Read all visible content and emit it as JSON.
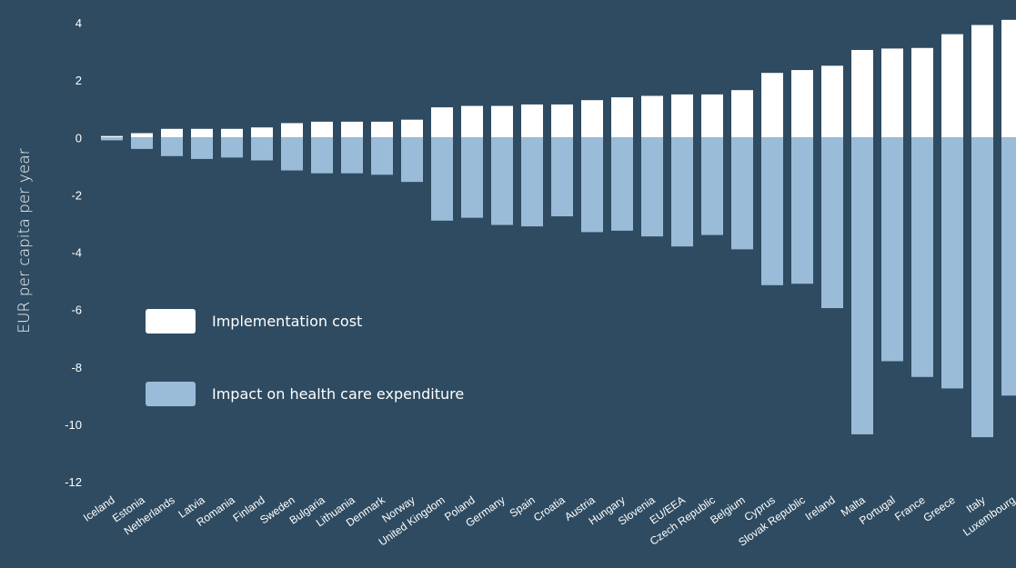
{
  "colors": {
    "background": "#2e4b61",
    "implementation": "#ffffff",
    "impact": "#9bbcd8",
    "text": "#ffffff"
  },
  "chart_data": {
    "type": "bar",
    "ylabel": "EUR per capita per year",
    "ylim": [
      -12,
      4
    ],
    "yticks": [
      4,
      2,
      0,
      -2,
      -4,
      -6,
      -8,
      -10,
      -12
    ],
    "grid": false,
    "legend_position": "lower-left",
    "categories": [
      "Iceland",
      "Estonia",
      "Netherlands",
      "Latvia",
      "Romania",
      "Finland",
      "Sweden",
      "Bulgaria",
      "Lithuania",
      "Denmark",
      "Norway",
      "United Kingdom",
      "Poland",
      "Germany",
      "Spain",
      "Croatia",
      "Austria",
      "Hungary",
      "Slovenia",
      "EU/EEA",
      "Czech Republic",
      "Belgium",
      "Cyprus",
      "Slovak Republic",
      "Ireland",
      "Malta",
      "Portugal",
      "France",
      "Greece",
      "Italy",
      "Luxembourg"
    ],
    "series": [
      {
        "name": "Implementation cost",
        "color": "#ffffff",
        "values": [
          0.05,
          0.15,
          0.3,
          0.3,
          0.3,
          0.35,
          0.5,
          0.55,
          0.55,
          0.55,
          0.62,
          1.05,
          1.1,
          1.1,
          1.15,
          1.15,
          1.3,
          1.4,
          1.45,
          1.5,
          1.5,
          1.65,
          2.25,
          2.35,
          2.5,
          3.05,
          3.1,
          3.12,
          3.6,
          3.92,
          4.1
        ]
      },
      {
        "name": "Impact on health care expenditure",
        "color": "#9bbcd8",
        "values": [
          -0.1,
          -0.4,
          -0.65,
          -0.75,
          -0.7,
          -0.8,
          -1.15,
          -1.25,
          -1.25,
          -1.3,
          -1.55,
          -2.9,
          -2.8,
          -3.05,
          -3.1,
          -2.75,
          -3.3,
          -3.25,
          -3.45,
          -3.8,
          -3.4,
          -3.9,
          -5.15,
          -5.1,
          -5.95,
          -10.35,
          -7.8,
          -8.35,
          -8.75,
          -10.45,
          -9.0
        ]
      }
    ]
  }
}
